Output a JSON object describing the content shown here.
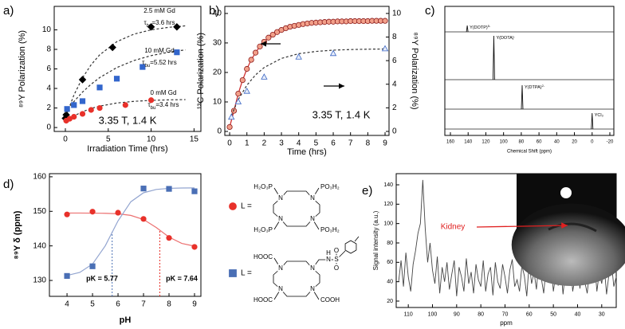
{
  "chart_data": [
    {
      "type": "scatter",
      "panel_label": "a)",
      "x_label": "Irradiation Time (hrs)",
      "y_label": "⁸⁹Y Polarization (%)",
      "xlim": [
        -1.3,
        15.8
      ],
      "xticks": [
        0,
        5,
        10,
        15
      ],
      "ylim": [
        -0.4,
        12.4
      ],
      "yticks": [
        0,
        2,
        4,
        6,
        8,
        10
      ],
      "annotation": "3.35 T, 1.4 K",
      "series": [
        {
          "name": "2.5 mM Gd",
          "tau": {
            "symbol": "τ",
            "sub": "bu",
            "text": "=3.6 hrs"
          },
          "color": "#000000",
          "marker": "diamond",
          "x": [
            0,
            0.1,
            2,
            5.5,
            10,
            13
          ],
          "values": [
            0.95,
            1.3,
            4.9,
            8.2,
            10.3,
            10.3
          ],
          "fit": {
            "x": [
              0,
              1,
              2,
              3,
              4,
              6,
              8,
              10,
              12,
              14
            ],
            "values": [
              1,
              3.33,
              5.09,
              6.42,
              7.44,
              8.79,
              9.56,
              10.0,
              10.25,
              10.41
            ],
            "style": "dashed",
            "color": "#333333"
          }
        },
        {
          "name": "10 mM Gd",
          "tau": {
            "symbol": "τ",
            "sub": "bu",
            "text": "=5.52 hrs"
          },
          "color": "#3366cc",
          "marker": "square",
          "x": [
            0.2,
            1,
            2,
            4,
            6,
            9,
            13
          ],
          "values": [
            1.9,
            2.3,
            2.7,
            4.1,
            5.0,
            6.2,
            7.7
          ],
          "fit": {
            "x": [
              0,
              1,
              2,
              3,
              4,
              6,
              8,
              10,
              12,
              14
            ],
            "values": [
              1.5,
              2.66,
              3.63,
              4.43,
              5.11,
              6.14,
              6.86,
              7.36,
              7.7,
              7.95
            ],
            "style": "dashed",
            "color": "#333333"
          }
        },
        {
          "name": "0 mM Gd",
          "tau": {
            "symbol": "τ",
            "sub": "bu",
            "text": "=3.4 hrs"
          },
          "color": "#e8312a",
          "marker": "circle",
          "x": [
            0.1,
            0.5,
            1,
            2,
            3,
            4,
            7,
            10
          ],
          "values": [
            0.7,
            0.9,
            1.1,
            1.4,
            1.8,
            2.0,
            2.3,
            2.8
          ],
          "fit": {
            "x": [
              0,
              1,
              2,
              3,
              4,
              6,
              8,
              10,
              12,
              14
            ],
            "values": [
              0.6,
              1.19,
              1.62,
              1.95,
              2.19,
              2.51,
              2.68,
              2.78,
              2.83,
              2.86
            ],
            "style": "dashed",
            "color": "#333333"
          }
        }
      ]
    },
    {
      "type": "scatter",
      "panel_label": "b)",
      "x_label": "Time (hrs)",
      "y_label": "¹³C Polarization (%)",
      "y2_label": "⁸⁹Y Polarization (%)",
      "xlim": [
        -0.28,
        9.23
      ],
      "xticks": [
        0,
        1,
        2,
        3,
        4,
        5,
        6,
        7,
        8,
        9
      ],
      "ylim": [
        -1.35,
        42.4
      ],
      "yticks": [
        0,
        10,
        20,
        30,
        40
      ],
      "y2lim": [
        -0.34,
        10.6
      ],
      "y2ticks": [
        0,
        2,
        4,
        6,
        8,
        10
      ],
      "annotation": "3.35 T, 1.4 K",
      "series": [
        {
          "color": "#8b1a1a",
          "fill": "#f2a08a",
          "marker": "circle",
          "line": "#d03030",
          "x": [
            0,
            0.25,
            0.5,
            0.75,
            1,
            1.25,
            1.5,
            1.75,
            2,
            2.25,
            2.5,
            2.75,
            3,
            3.25,
            3.5,
            3.75,
            4,
            4.25,
            4.5,
            4.75,
            5,
            5.25,
            5.5,
            5.75,
            6,
            6.25,
            6.5,
            6.75,
            7,
            7.25,
            7.5,
            7.75,
            8,
            8.25,
            8.5,
            8.75,
            9
          ],
          "values": [
            1.5,
            7.0,
            12.8,
            17.4,
            21.2,
            24.3,
            26.7,
            28.8,
            30.4,
            31.8,
            32.8,
            33.7,
            34.4,
            35.0,
            35.5,
            35.8,
            36.1,
            36.4,
            36.6,
            36.8,
            36.9,
            37.0,
            37.1,
            37.2,
            37.2,
            37.3,
            37.3,
            37.3,
            37.4,
            37.4,
            37.4,
            37.4,
            37.4,
            37.5,
            37.5,
            37.5,
            37.5
          ]
        },
        {
          "axis": "y2",
          "color": "#3a66c4",
          "fill": "#e8eefa",
          "marker": "triangle",
          "x": [
            0.1,
            0.5,
            1,
            2,
            4,
            6,
            9
          ],
          "values": [
            1.2,
            2.5,
            3.4,
            4.6,
            6.3,
            6.6,
            7.0
          ],
          "fit": {
            "x": [
              0,
              0.5,
              1,
              1.5,
              2,
              3,
              4,
              5,
              6,
              7,
              8,
              9
            ],
            "values": [
              1,
              2.7,
              3.92,
              4.79,
              5.42,
              6.19,
              6.59,
              6.78,
              6.89,
              6.94,
              6.97,
              6.99
            ],
            "style": "dashed",
            "color": "#333333"
          }
        }
      ]
    },
    {
      "type": "spectra",
      "panel_label": "c)",
      "x_label": "Chemical Shift (ppm)",
      "xlim": [
        166.3,
        -24.5
      ],
      "xticks": [
        160,
        140,
        120,
        100,
        80,
        60,
        40,
        20,
        0,
        -20
      ],
      "peaks": [
        {
          "label": "Y(DOTP)",
          "charge": "5-",
          "shift": 141,
          "intensity": 8
        },
        {
          "label": "Y(DOTA)",
          "charge": "-",
          "shift": 111,
          "intensity": 55
        },
        {
          "label": "Y(DTPA)",
          "charge": "2-",
          "shift": 79,
          "intensity": 30
        },
        {
          "label": "YCl₃",
          "shift": 0,
          "intensity": 20
        }
      ]
    },
    {
      "type": "scatter",
      "panel_label": "d)",
      "x_label": "pH",
      "y_label": "⁸⁹Y  δ (ppm)",
      "xlim": [
        3.31,
        9.25
      ],
      "xticks": [
        4,
        5,
        6,
        7,
        8,
        9
      ],
      "ylim": [
        125.4,
        160.9
      ],
      "yticks": [
        130,
        140,
        150,
        160
      ],
      "series": [
        {
          "name": "L =",
          "color": "#e8312a",
          "marker": "circle",
          "x": [
            4,
            5,
            6,
            7,
            8,
            9
          ],
          "values": [
            149.1,
            149.9,
            149.6,
            147.8,
            142.3,
            139.7
          ],
          "fit": {
            "x": [
              4,
              4.5,
              5,
              5.5,
              6,
              6.5,
              7,
              7.5,
              8,
              8.5,
              9
            ],
            "values": [
              149.5,
              149.5,
              149.48,
              149.43,
              149.28,
              148.82,
              147.64,
              145.3,
              142.54,
              140.71,
              139.92
            ],
            "style": "solid",
            "color": "#ec7070"
          }
        },
        {
          "name": "L =",
          "color": "#4a6fb5",
          "marker": "square",
          "x": [
            4,
            5,
            7,
            8,
            9
          ],
          "values": [
            131.3,
            134.1,
            156.6,
            156.5,
            155.8
          ],
          "fit": {
            "x": [
              4,
              4.5,
              5,
              5.5,
              6,
              6.5,
              7,
              7.5,
              8,
              8.5,
              9
            ],
            "values": [
              131.43,
              132.32,
              134.74,
              140.02,
              147.24,
              152.75,
              155.37,
              156.33,
              156.65,
              156.75,
              156.78
            ],
            "style": "solid",
            "color": "#93a5d0"
          }
        }
      ],
      "pk_lines": [
        {
          "value": 7.64,
          "label": "pK = 7.64",
          "color": "#e8312a"
        },
        {
          "value": 5.77,
          "label": "pK = 5.77",
          "color": "#4a6fb5"
        }
      ],
      "structures": [
        {
          "labels": [
            "H₂O₃P",
            "PO₃H₂",
            "H₂O₃P",
            "PO₃H₂",
            "N",
            "N",
            "N",
            "N"
          ]
        },
        {
          "labels": [
            "HOOC",
            "HOOC",
            "COOH",
            "N",
            "N",
            "N",
            "N",
            "N",
            "H",
            "S",
            "O",
            "O"
          ]
        }
      ]
    },
    {
      "type": "line",
      "panel_label": "e)",
      "x_label": "ppm",
      "y_label": "Signal intensity (a.u.)",
      "xlim": [
        115,
        24
      ],
      "xticks": [
        110,
        100,
        90,
        80,
        70,
        60,
        50,
        40,
        30
      ],
      "ylim": [
        13.4,
        151.5
      ],
      "yticks": [
        20,
        40,
        60,
        80,
        100,
        120,
        140
      ],
      "color": "#444444",
      "inset_label": "Kidney",
      "x": [
        114,
        113,
        112,
        111,
        110,
        109,
        108,
        107,
        106,
        105,
        104,
        103,
        102,
        101,
        100,
        99,
        98,
        97,
        96,
        95,
        94,
        93,
        92,
        91,
        90,
        89,
        88,
        87,
        86,
        85,
        84,
        83,
        82,
        81,
        80,
        79,
        78,
        77,
        76,
        75,
        74,
        73,
        72,
        71,
        70,
        69,
        68,
        67,
        66,
        65,
        64,
        63,
        62,
        61,
        60,
        59,
        58,
        57,
        56,
        55,
        54,
        53,
        52,
        51,
        50,
        49,
        48,
        47,
        46,
        45,
        44,
        43,
        42,
        41,
        40,
        39,
        38,
        37,
        36,
        35,
        34,
        33,
        32,
        31,
        30,
        29,
        28,
        27,
        26,
        25,
        24
      ],
      "values": [
        40,
        62,
        35,
        70,
        45,
        30,
        58,
        72,
        90,
        100,
        145,
        95,
        60,
        80,
        52,
        38,
        66,
        28,
        55,
        40,
        60,
        32,
        48,
        62,
        25,
        55,
        45,
        30,
        64,
        38,
        50,
        28,
        58,
        42,
        35,
        62,
        30,
        48,
        55,
        26,
        60,
        40,
        33,
        58,
        45,
        28,
        52,
        63,
        35,
        42,
        30,
        57,
        46,
        25,
        60,
        38,
        50,
        32,
        62,
        44,
        28,
        55,
        40,
        60,
        30,
        48,
        36,
        58,
        27,
        52,
        42,
        63,
        30,
        46,
        55,
        33,
        60,
        40,
        28,
        52,
        45,
        62,
        30,
        50,
        38,
        57,
        27,
        48,
        60,
        35,
        45
      ]
    }
  ]
}
